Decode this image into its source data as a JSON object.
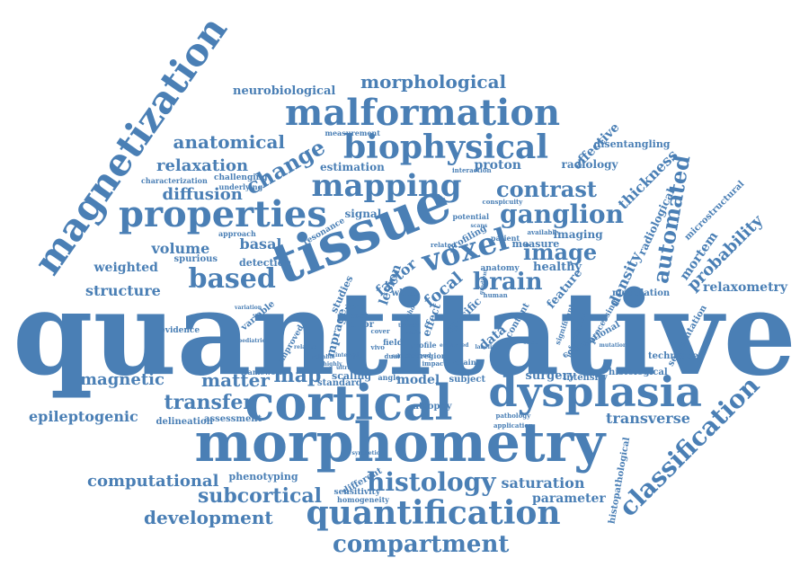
{
  "theme": {
    "word_color": "#4a7fb5",
    "background": "#ffffff"
  },
  "words": [
    "quantitative",
    "morphometry",
    "tissue",
    "cortical",
    "dysplasia",
    "magnetization",
    "malformation",
    "properties",
    "biophysical",
    "quantification",
    "voxel",
    "mapping",
    "based",
    "histology",
    "compartment",
    "classification",
    "ganglion",
    "automated",
    "brain",
    "image",
    "contrast",
    "change",
    "morphological",
    "anatomical",
    "relaxation",
    "diffusion",
    "transfer",
    "subcortical",
    "matter",
    "magnetic",
    "development",
    "computational",
    "epileptogenic",
    "structure",
    "weighted",
    "volume",
    "basal",
    "probability",
    "density",
    "thickness",
    "relaxometry",
    "effective",
    "transverse",
    "saturation",
    "parameter",
    "model",
    "map",
    "data",
    "radiology",
    "radiological",
    "mortem",
    "microstructural",
    "histopathological",
    "neurobiological",
    "estimation",
    "proton",
    "disentangling",
    "signal",
    "imaging",
    "measure",
    "healthy",
    "feature",
    "detection",
    "spurious",
    "factor",
    "focal",
    "lesion",
    "surgery",
    "intensity",
    "histological",
    "technique",
    "modulation",
    "segmentation",
    "phenotyping",
    "scaling",
    "standard",
    "subject",
    "atrophy",
    "delineation",
    "assessment",
    "different",
    "sensitivity",
    "homogeneity",
    "framework",
    "evidence",
    "variable",
    "mprage",
    "improved",
    "zone",
    "post",
    "prior",
    "white",
    "anatomy",
    "studies",
    "characterization",
    "challenging",
    "underlying",
    "approach",
    "resonance",
    "potential",
    "conspicuity",
    "interaction",
    "measurement",
    "specific",
    "content",
    "related",
    "profiling",
    "patient",
    "available",
    "field",
    "effect",
    "region",
    "angle",
    "profile",
    "impact",
    "retain",
    "conventional",
    "processing",
    "significant",
    "information",
    "mutation",
    "pathology",
    "application",
    "method",
    "human",
    "pediatric",
    "cover",
    "highly",
    "ultra",
    "synthetic",
    "dual",
    "vivo",
    "echo",
    "gradient",
    "scans",
    "slice",
    "labeling",
    "sample",
    "flip",
    "ratio",
    "interval",
    "trained",
    "enhanced",
    "variation",
    "relative",
    "reliable"
  ]
}
